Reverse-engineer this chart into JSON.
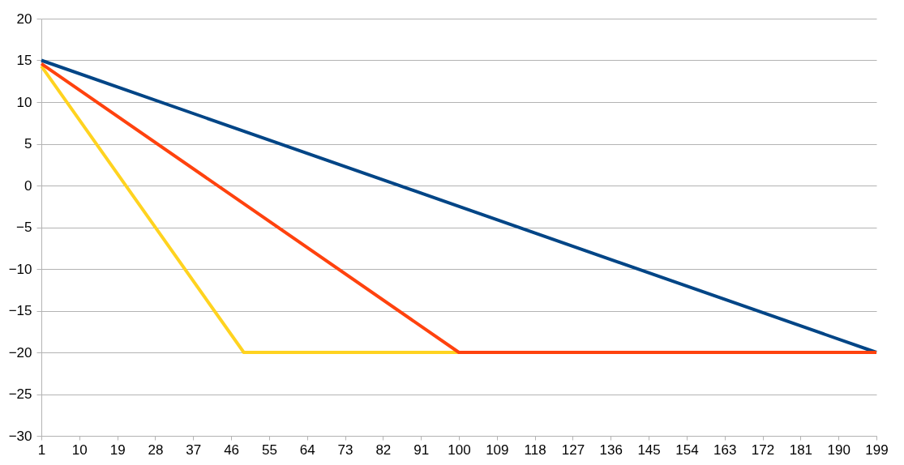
{
  "chart_data": {
    "type": "line",
    "xlim": [
      1,
      199
    ],
    "xticks": [
      1,
      10,
      19,
      28,
      37,
      46,
      55,
      64,
      73,
      82,
      91,
      100,
      109,
      118,
      127,
      136,
      145,
      154,
      163,
      172,
      181,
      190,
      199
    ],
    "ylim": [
      -30,
      20
    ],
    "yticks": [
      -30,
      -25,
      -20,
      -15,
      -10,
      -5,
      0,
      5,
      10,
      15,
      20
    ],
    "grid": "y",
    "legend": false,
    "marker": "none",
    "line_style": "solid",
    "series": [
      {
        "color": "#004586",
        "x": [
          1,
          199
        ],
        "values": [
          15,
          -20
        ]
      },
      {
        "color": "#ffd320",
        "x": [
          1,
          49,
          100
        ],
        "values": [
          14.3,
          -20,
          -20
        ]
      },
      {
        "color": "#ff420e",
        "x": [
          1,
          100,
          199
        ],
        "values": [
          14.6,
          -20,
          -20
        ]
      }
    ]
  }
}
